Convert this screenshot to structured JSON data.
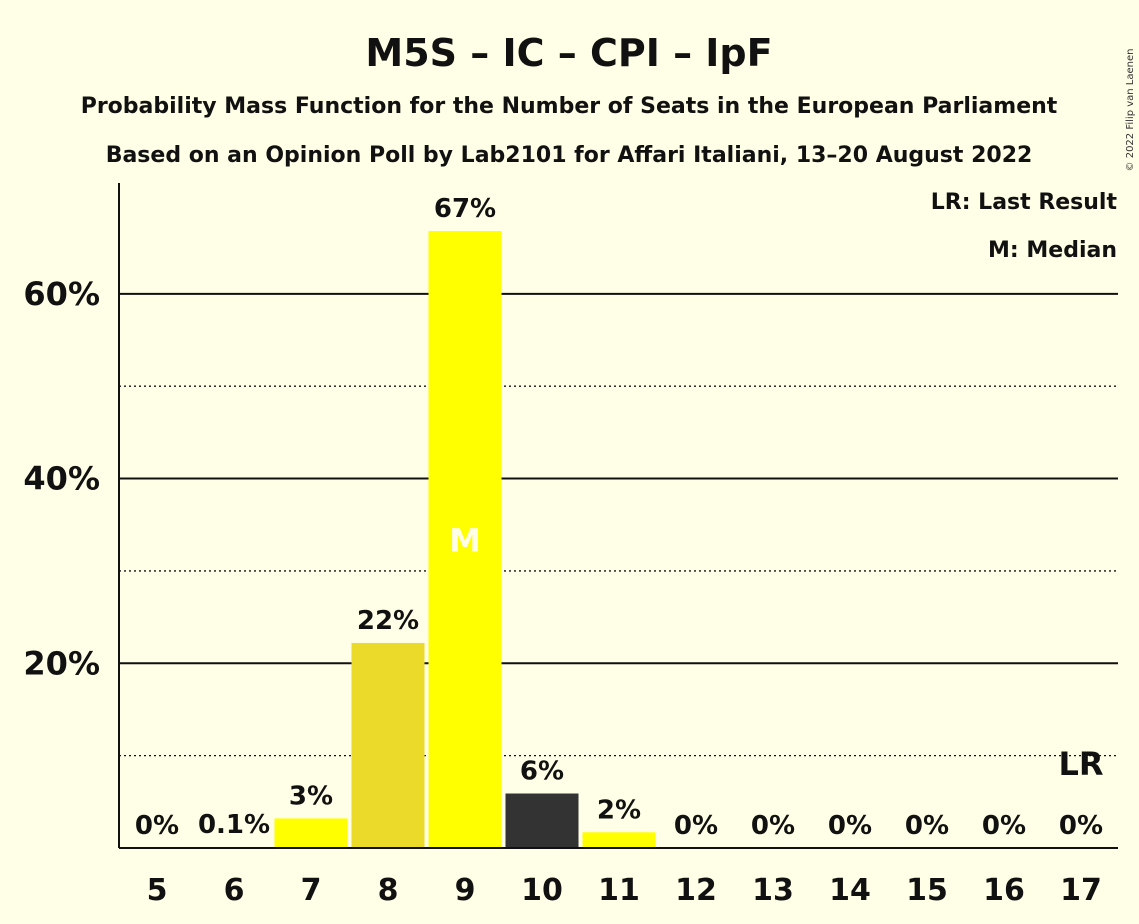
{
  "copyright": "© 2022 Filip van Laenen",
  "chart_data": {
    "type": "bar",
    "title": "M5S – IC – CPI – IpF",
    "subtitle": "Probability Mass Function for the Number of Seats in the European Parliament",
    "subtitle2": "Based on an Opinion Poll by Lab2101 for Affari Italiani, 13–20 August 2022",
    "legend": [
      "LR: Last Result",
      "M: Median"
    ],
    "categories": [
      "5",
      "6",
      "7",
      "8",
      "9",
      "10",
      "11",
      "12",
      "13",
      "14",
      "15",
      "16",
      "17"
    ],
    "values": [
      0,
      0.1,
      3.2,
      22.2,
      66.8,
      5.9,
      1.7,
      0,
      0,
      0,
      0,
      0,
      0
    ],
    "labels": [
      "0%",
      "0.1%",
      "3%",
      "22%",
      "67%",
      "6%",
      "2%",
      "0%",
      "0%",
      "0%",
      "0%",
      "0%",
      "0%"
    ],
    "bar_colors": [
      "#FFFF00",
      "#FFFF00",
      "#FFFF00",
      "#EBDA29",
      "#FFFF00",
      "#333333",
      "#FFFF00",
      "#FFFF00",
      "#FFFF00",
      "#FFFF00",
      "#FFFF00",
      "#FFFF00",
      "#FFFF00"
    ],
    "ylim": [
      0,
      72
    ],
    "yticks": [
      20,
      40,
      60
    ],
    "ytick_labels": [
      "20%",
      "40%",
      "60%"
    ],
    "minor_gridlines": [
      10,
      30,
      50
    ],
    "median_category": "9",
    "median_label": "M",
    "last_result_category": "17",
    "last_result_label": "LR",
    "background": "#FFFEE6"
  }
}
